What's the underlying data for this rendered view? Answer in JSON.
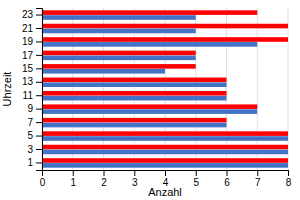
{
  "chart_data": {
    "type": "bar",
    "orientation": "horizontal",
    "xlabel": "Anzahl",
    "ylabel": "Uhrzeit",
    "categories": [
      1,
      3,
      5,
      7,
      9,
      11,
      13,
      15,
      17,
      19,
      21,
      23
    ],
    "series": [
      {
        "color": "#FF0000",
        "values": [
          8,
          8,
          8,
          6,
          7,
          6,
          6,
          5,
          5,
          8,
          8,
          7
        ]
      },
      {
        "color": "#4472C4",
        "values": [
          8,
          8,
          8,
          6,
          7,
          6,
          6,
          4,
          5,
          7,
          5,
          5
        ]
      }
    ],
    "xlim": [
      0,
      8
    ],
    "xticks": [
      0,
      1,
      2,
      3,
      4,
      5,
      6,
      7,
      8
    ],
    "grid": true
  }
}
